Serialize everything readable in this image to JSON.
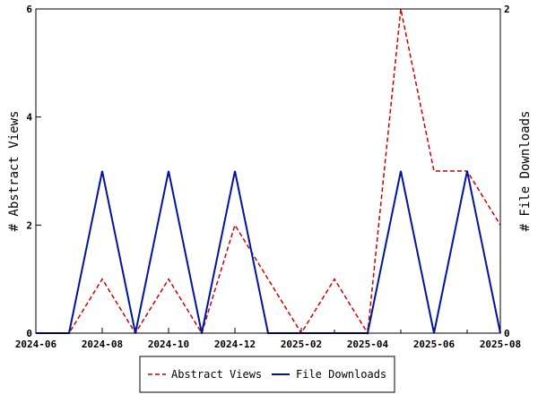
{
  "chart_data": {
    "type": "line",
    "x": [
      "2024-06",
      "2024-07",
      "2024-08",
      "2024-09",
      "2024-10",
      "2024-11",
      "2024-12",
      "2025-01",
      "2025-02",
      "2025-03",
      "2025-04",
      "2025-05",
      "2025-06",
      "2025-07",
      "2025-08"
    ],
    "x_tick_labels": [
      "2024-06",
      "2024-08",
      "2024-10",
      "2024-12",
      "2025-02",
      "2025-04",
      "2025-06",
      "2025-08"
    ],
    "ylabel_left": "# Abstract Views",
    "ylabel_right": "# File Downloads",
    "ylim_left": [
      0,
      6
    ],
    "ylim_right": [
      0,
      2
    ],
    "y_ticks_left": [
      "0",
      "2",
      "4",
      "6"
    ],
    "y_ticks_right": [
      "0",
      "2"
    ],
    "grid": false,
    "legend_position": "bottom-center",
    "series": [
      {
        "name": "Abstract Views",
        "axis": "left",
        "color": "#cc0000",
        "style": "dashed",
        "values": [
          0,
          0,
          1,
          0,
          1,
          0,
          2,
          1,
          0,
          1,
          0,
          6,
          3,
          3,
          2
        ]
      },
      {
        "name": "File Downloads",
        "axis": "right",
        "color": "#00159e",
        "style": "solid",
        "values": [
          0,
          0,
          1,
          0,
          1,
          0,
          1,
          0,
          0,
          0,
          0,
          1,
          0,
          1,
          0
        ]
      }
    ]
  }
}
